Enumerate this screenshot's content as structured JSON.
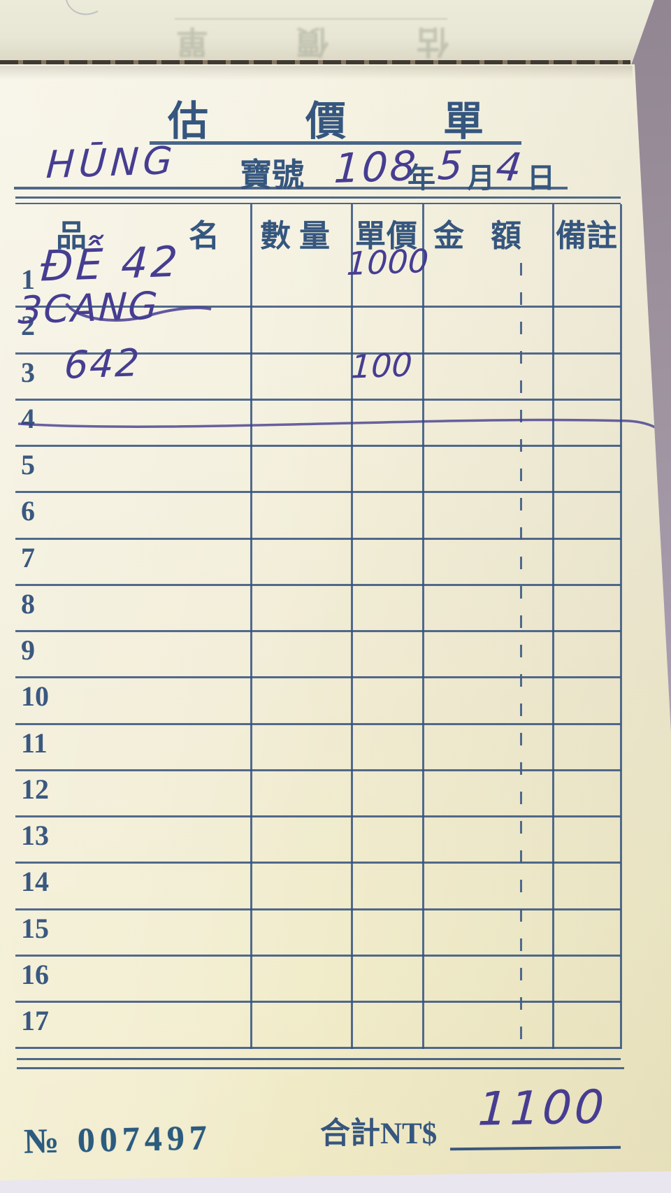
{
  "background": {
    "desk_color": "#9e939e",
    "table_surface_color": "#e9e6ef"
  },
  "flipped_sheet": {
    "ghost_title": "估價單"
  },
  "page": {
    "title": "估價單",
    "customer": {
      "name": "HŪNG",
      "label": "寶號"
    },
    "date": {
      "year": "108",
      "year_suffix": "年",
      "month": "5",
      "month_suffix": "月",
      "day": "4",
      "day_suffix": "日"
    },
    "table": {
      "headers": [
        {
          "id": "item",
          "label": "品名"
        },
        {
          "id": "qty",
          "label": "數量"
        },
        {
          "id": "unit_price",
          "label": "單價"
        },
        {
          "id": "amount",
          "label": "金額"
        },
        {
          "id": "remark",
          "label": "備註"
        }
      ],
      "rows": [
        {
          "no": "1",
          "item": "ĐỄ 42",
          "qty": "",
          "unit_price": "1000",
          "amount": "",
          "remark": ""
        },
        {
          "no": "2",
          "item": "3CANG",
          "qty": "",
          "unit_price": "",
          "amount": "",
          "remark": ""
        },
        {
          "no": "3",
          "item": "642",
          "qty": "",
          "unit_price": "100",
          "amount": "",
          "remark": ""
        },
        {
          "no": "4",
          "item": "",
          "qty": "",
          "unit_price": "",
          "amount": "",
          "remark": "",
          "strike_line": true
        },
        {
          "no": "5"
        },
        {
          "no": "6"
        },
        {
          "no": "7"
        },
        {
          "no": "8"
        },
        {
          "no": "9"
        },
        {
          "no": "10"
        },
        {
          "no": "11"
        },
        {
          "no": "12"
        },
        {
          "no": "13"
        },
        {
          "no": "14"
        },
        {
          "no": "15"
        },
        {
          "no": "16"
        },
        {
          "no": "17"
        }
      ]
    },
    "total": {
      "label": "合計NT$",
      "value": "1100"
    },
    "serial": "№ 007497",
    "ink_color": "#463d92",
    "print_color": "#35567e"
  }
}
